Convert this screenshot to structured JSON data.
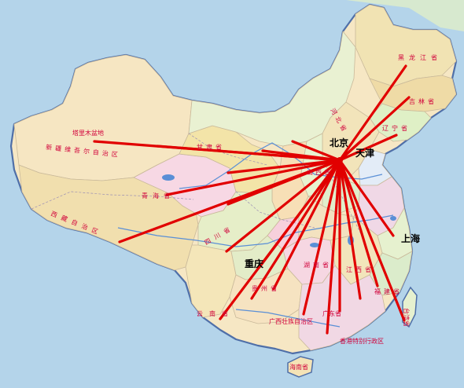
{
  "map": {
    "cities": [
      {
        "id": "beijing",
        "label": "北京"
      },
      {
        "id": "tianjin",
        "label": "天津"
      },
      {
        "id": "shanghai",
        "label": "上海"
      },
      {
        "id": "chongqing",
        "label": "重庆"
      }
    ],
    "region_labels": [
      {
        "id": "xinjiang",
        "label": "新疆维吾尔自治区"
      },
      {
        "id": "xizang",
        "label": "西藏自治区"
      },
      {
        "id": "qinghai",
        "label": "青海省"
      },
      {
        "id": "gansu",
        "label": "甘肃省"
      },
      {
        "id": "sichuan",
        "label": "四川省"
      },
      {
        "id": "yunnan",
        "label": "云南省"
      },
      {
        "id": "guizhou",
        "label": "贵州省"
      },
      {
        "id": "guangxi",
        "label": "广西壮族自治区"
      },
      {
        "id": "guangdong",
        "label": "广东省"
      },
      {
        "id": "hongkong",
        "label": "香港特别行政区"
      },
      {
        "id": "hunan",
        "label": "湖南省"
      },
      {
        "id": "jiangxi",
        "label": "江西省"
      },
      {
        "id": "fujian",
        "label": "福建省"
      },
      {
        "id": "heilongjiang",
        "label": "黑龙江省"
      },
      {
        "id": "jilin",
        "label": "吉林省"
      },
      {
        "id": "liaoning",
        "label": "辽宁省"
      },
      {
        "id": "hebei",
        "label": "河北省"
      },
      {
        "id": "shanxi",
        "label": "山西省"
      },
      {
        "id": "hainan",
        "label": "海南省"
      },
      {
        "id": "taiwan",
        "label": "台湾省"
      },
      {
        "id": "tarim",
        "label": "塔里木盆地"
      }
    ],
    "colors": {
      "sea": "#b4d4ea",
      "route": "#e10000",
      "province_label": "#d1003a",
      "border": "#4f6fa8"
    }
  }
}
